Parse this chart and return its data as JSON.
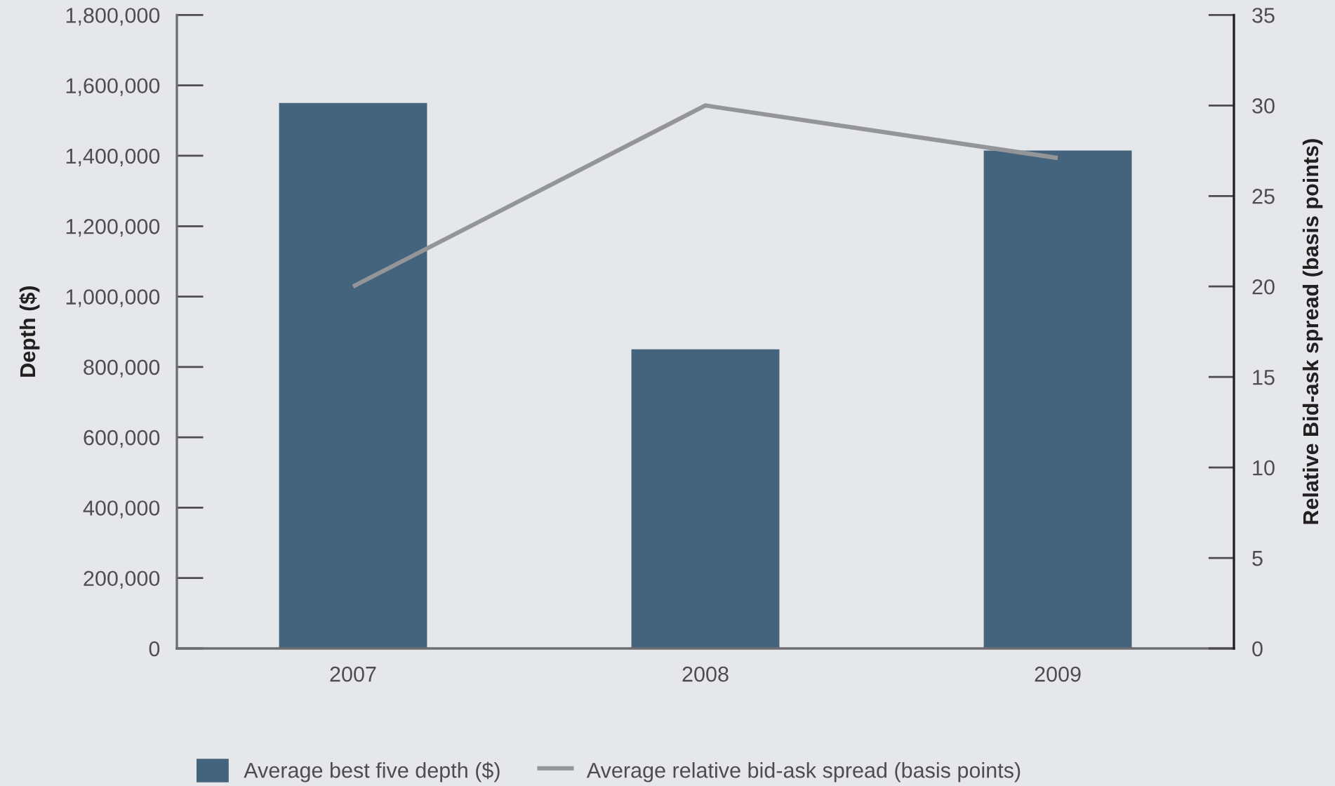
{
  "chart_data": {
    "type": "bar",
    "categories": [
      "2007",
      "2008",
      "2009"
    ],
    "ylabel": "Depth ($)",
    "y2label": "Relative Bid-ask spread (basis points)",
    "series": [
      {
        "name": "Average best five depth ($)",
        "color": "#44637c",
        "values": [
          1550000,
          850000,
          1415000
        ]
      },
      {
        "name": "Average relative bid-ask spread (basis points)",
        "type": "line",
        "axis": "y2",
        "color": "#939598",
        "values": [
          20,
          30,
          27.1
        ]
      }
    ],
    "ylim": [
      0,
      1800000
    ],
    "yticks": [
      0,
      {
        "value": 200000,
        "label": "200,000"
      },
      {
        "value": 400000,
        "label": "400,000"
      },
      {
        "value": 600000,
        "label": "600,000"
      },
      {
        "value": 800000,
        "label": "800,000"
      },
      {
        "value": 1000000,
        "label": "1,000,000"
      },
      {
        "value": 1200000,
        "label": "1,200,000"
      },
      {
        "value": 1400000,
        "label": "1,400,000"
      },
      {
        "value": 1600000,
        "label": "1,600,000"
      },
      {
        "value": 1800000,
        "label": "1,800,000"
      }
    ],
    "y2lim": [
      0,
      35
    ],
    "y2ticks": [
      0,
      5,
      10,
      15,
      20,
      25,
      30,
      35
    ],
    "legend": "bottom"
  }
}
